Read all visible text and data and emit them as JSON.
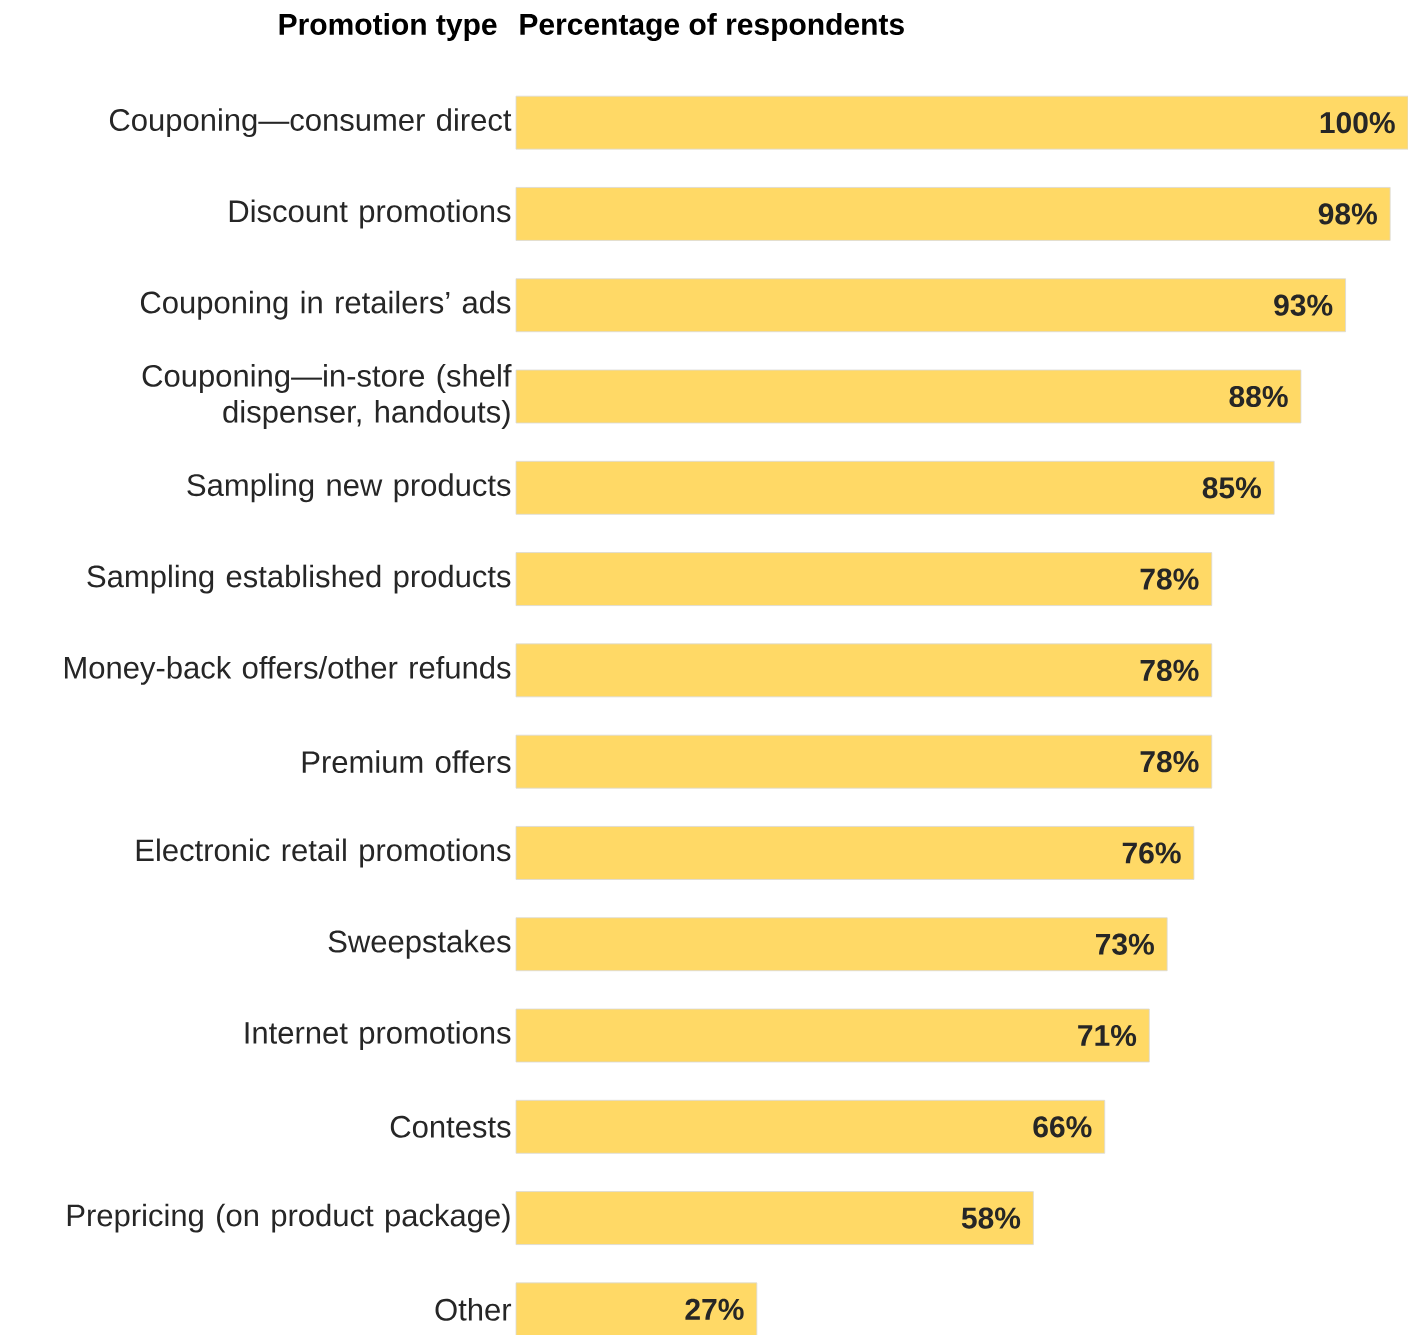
{
  "chart_data": {
    "type": "bar",
    "orientation": "horizontal",
    "ylabel": "Promotion type",
    "xlabel": "Percentage of respondents",
    "categories": [
      "Couponing—consumer direct",
      "Discount promotions",
      "Couponing in retailers’ ads",
      "Couponing—in-store (shelf dispenser, handouts)",
      "Sampling new products",
      "Sampling established products",
      "Money-back offers/other refunds",
      "Premium offers",
      "Electronic retail promotions",
      "Sweepstakes",
      "Internet promotions",
      "Contests",
      "Prepricing (on product package)",
      "Other"
    ],
    "values": [
      100,
      98,
      93,
      88,
      85,
      78,
      78,
      78,
      76,
      73,
      71,
      66,
      58,
      27
    ],
    "value_labels": [
      "100%",
      "98%",
      "93%",
      "88%",
      "85%",
      "78%",
      "78%",
      "78%",
      "76%",
      "73%",
      "71%",
      "66%",
      "58%",
      "27%"
    ],
    "color": "#ffd966",
    "xlim": [
      0,
      100
    ],
    "tick_labels": "y"
  }
}
